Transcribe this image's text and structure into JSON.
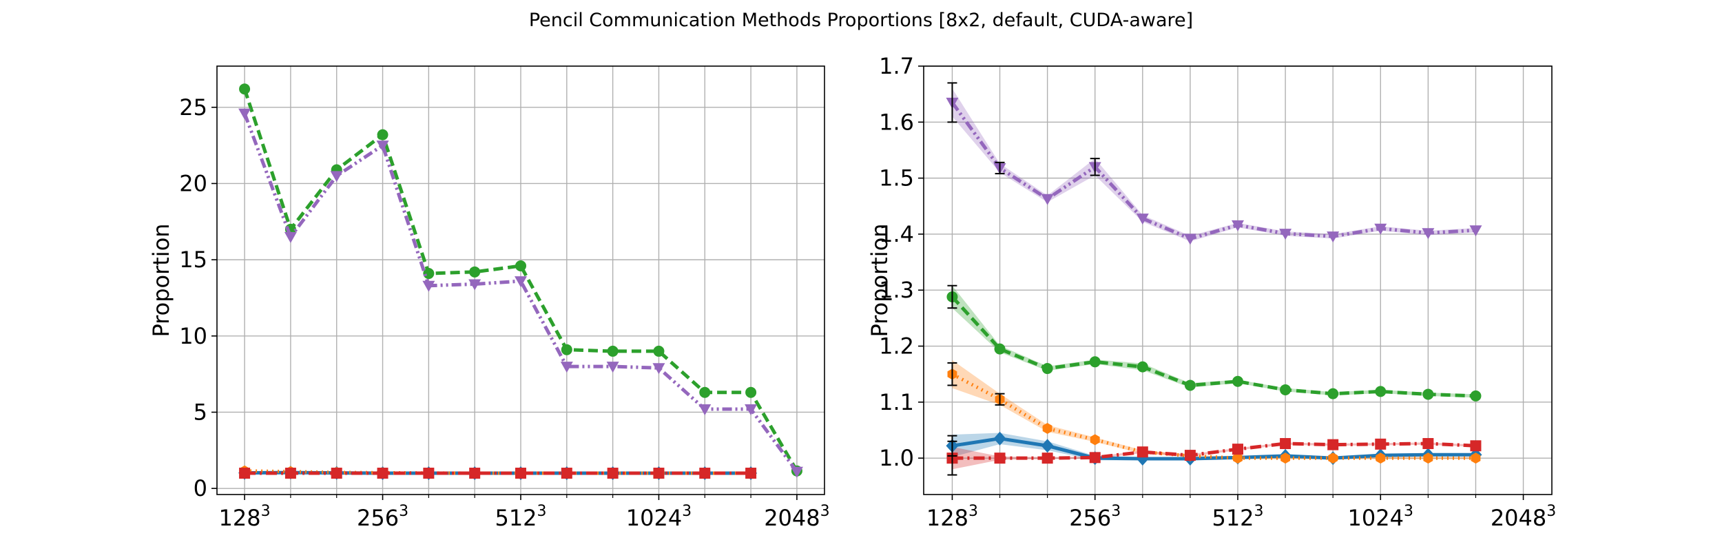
{
  "figure": {
    "title": "Pencil Communication Methods Proportions [8x2, default, CUDA-aware]"
  },
  "chart_data": [
    {
      "type": "line",
      "title": "",
      "xlabel": "",
      "ylabel": "Proportion",
      "grid": true,
      "legend": "none",
      "x_tick_labels": [
        {
          "base": "128",
          "exp": "3"
        },
        {
          "base": "256",
          "exp": "3"
        },
        {
          "base": "512",
          "exp": "3"
        },
        {
          "base": "1024",
          "exp": "3"
        },
        {
          "base": "2048",
          "exp": "3"
        }
      ],
      "x": [
        0,
        1,
        2,
        3,
        4,
        5,
        6,
        7,
        8,
        9,
        10,
        11,
        12
      ],
      "xlim": [
        -0.6,
        12.6
      ],
      "ylim": [
        -0.4,
        27.7
      ],
      "yticks": [
        0,
        5,
        10,
        15,
        20,
        25
      ],
      "series": [
        {
          "color": "#1f77b4",
          "linestyle": "solid",
          "marker": "diamond",
          "values": [
            1.02,
            1.04,
            1.02,
            1.0,
            1.0,
            1.0,
            1.0,
            1.0,
            1.0,
            1.0,
            1.0,
            1.0,
            null
          ]
        },
        {
          "color": "#ff7f0e",
          "linestyle": "dotted",
          "marker": "hexagon",
          "values": [
            1.15,
            1.1,
            1.05,
            1.03,
            1.01,
            1.0,
            1.0,
            1.0,
            1.0,
            1.0,
            1.0,
            1.0,
            null
          ]
        },
        {
          "color": "#2ca02c",
          "linestyle": "dashed",
          "marker": "circle",
          "values": [
            26.2,
            17.0,
            20.9,
            23.2,
            14.1,
            14.2,
            14.6,
            9.1,
            9.0,
            9.0,
            6.3,
            6.3,
            1.15
          ]
        },
        {
          "color": "#d62728",
          "linestyle": "dashdot",
          "marker": "square",
          "values": [
            1.0,
            1.0,
            1.0,
            1.0,
            1.0,
            1.0,
            1.0,
            1.0,
            1.0,
            1.0,
            1.0,
            1.0,
            null
          ]
        },
        {
          "color": "#9467bd",
          "linestyle": "dashdotdot",
          "marker": "triangle-down",
          "values": [
            24.6,
            16.5,
            20.5,
            22.5,
            13.3,
            13.4,
            13.6,
            8.0,
            8.0,
            7.9,
            5.2,
            5.2,
            1.1
          ]
        }
      ]
    },
    {
      "type": "line",
      "title": "",
      "xlabel": "",
      "ylabel": "Proportion",
      "grid": true,
      "legend": "none",
      "x_tick_labels": [
        {
          "base": "128",
          "exp": "3"
        },
        {
          "base": "256",
          "exp": "3"
        },
        {
          "base": "512",
          "exp": "3"
        },
        {
          "base": "1024",
          "exp": "3"
        },
        {
          "base": "2048",
          "exp": "3"
        }
      ],
      "x": [
        0,
        1,
        2,
        3,
        4,
        5,
        6,
        7,
        8,
        9,
        10,
        11
      ],
      "xlim": [
        -0.6,
        12.6
      ],
      "ylim": [
        0.935,
        1.7
      ],
      "yticks": [
        1.0,
        1.1,
        1.2,
        1.3,
        1.4,
        1.5,
        1.6,
        1.7
      ],
      "series": [
        {
          "color": "#1f77b4",
          "linestyle": "solid",
          "marker": "diamond",
          "values": [
            1.022,
            1.035,
            1.022,
            1.0,
            0.999,
            0.999,
            1.001,
            1.004,
            1.0,
            1.005,
            1.006,
            1.006
          ],
          "band": [
            0.02,
            0.01,
            0.008,
            0.004,
            0.003,
            0.002,
            0.002,
            0.002,
            0.002,
            0.002,
            0.002,
            0.002
          ],
          "errors": [
            0.018,
            0,
            0,
            0,
            0,
            0,
            0,
            0,
            0,
            0,
            0,
            0
          ]
        },
        {
          "color": "#ff7f0e",
          "linestyle": "dotted",
          "marker": "hexagon",
          "values": [
            1.15,
            1.105,
            1.053,
            1.033,
            1.011,
            1.004,
            1.0,
            1.0,
            1.0,
            1.0,
            1.0,
            1.0
          ],
          "band": [
            0.025,
            0.01,
            0.006,
            0.004,
            0.003,
            0.002,
            0.002,
            0.002,
            0.002,
            0.002,
            0.002,
            0.002
          ],
          "errors": [
            0.02,
            0.01,
            0,
            0,
            0,
            0,
            0,
            0,
            0,
            0,
            0,
            0
          ]
        },
        {
          "color": "#2ca02c",
          "linestyle": "dashed",
          "marker": "circle",
          "values": [
            1.288,
            1.195,
            1.16,
            1.172,
            1.163,
            1.13,
            1.137,
            1.122,
            1.115,
            1.119,
            1.114,
            1.111
          ],
          "band": [
            0.02,
            0.006,
            0.004,
            0.004,
            0.006,
            0.004,
            0.003,
            0.003,
            0.003,
            0.003,
            0.003,
            0.003
          ],
          "errors": [
            0.02,
            0,
            0,
            0,
            0,
            0,
            0,
            0,
            0,
            0,
            0,
            0
          ]
        },
        {
          "color": "#d62728",
          "linestyle": "dashdot",
          "marker": "square",
          "values": [
            1.0,
            1.0,
            1.0,
            1.001,
            1.011,
            1.005,
            1.016,
            1.026,
            1.024,
            1.025,
            1.026,
            1.022
          ],
          "band": [
            0.02,
            0.003,
            0.002,
            0.002,
            0.002,
            0.002,
            0.002,
            0.002,
            0.002,
            0.002,
            0.002,
            0.002
          ],
          "errors": [
            0.03,
            0,
            0,
            0,
            0,
            0,
            0,
            0,
            0,
            0,
            0,
            0
          ]
        },
        {
          "color": "#9467bd",
          "linestyle": "dashdotdot",
          "marker": "triangle-down",
          "values": [
            1.635,
            1.518,
            1.463,
            1.52,
            1.428,
            1.392,
            1.416,
            1.401,
            1.396,
            1.41,
            1.402,
            1.407
          ],
          "band": [
            0.025,
            0.008,
            0.006,
            0.015,
            0.006,
            0.005,
            0.004,
            0.004,
            0.004,
            0.004,
            0.004,
            0.004
          ],
          "errors": [
            0.035,
            0.01,
            0,
            0.015,
            0,
            0,
            0,
            0,
            0,
            0,
            0,
            0
          ]
        }
      ]
    }
  ]
}
